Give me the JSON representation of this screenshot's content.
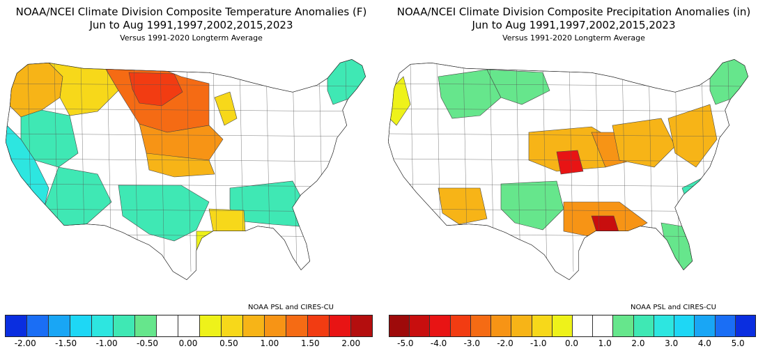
{
  "panels": [
    {
      "title_line1": "NOAA/NCEI Climate Division Composite Temperature Anomalies (F)",
      "title_line2": "Jun to Aug   1991,1997,2002,2015,2023",
      "title_line3": "Versus 1991-2020 Longterm Average",
      "credit": "NOAA PSL and CIRES-CU",
      "colorbar": [
        "#0a2ee0",
        "#1a6ef5",
        "#19a6f5",
        "#1ed7f5",
        "#2de6e0",
        "#3fe8b4",
        "#66e68c",
        "#ffffff",
        "#ffffff",
        "#eef21a",
        "#f7d81a",
        "#f7b417",
        "#f79415",
        "#f56b14",
        "#f23c12",
        "#e81414",
        "#b40e0e"
      ],
      "ticks": [
        "-2.00",
        "-1.50",
        "-1.00",
        "-0.50",
        "0.00",
        "0.50",
        "1.00",
        "1.50",
        "2.00"
      ],
      "map": {
        "base": "#ffffff",
        "regions": [
          {
            "label": "Pacific NW",
            "color": "#f7b417"
          },
          {
            "label": "Northern Rockies",
            "color": "#f7d81a"
          },
          {
            "label": "Northern Plains",
            "color": "#f56b14"
          },
          {
            "label": "Dakotas core",
            "color": "#f23c12"
          },
          {
            "label": "Central Plains",
            "color": "#f79415"
          },
          {
            "label": "Kansas/Nebraska",
            "color": "#f7b417"
          },
          {
            "label": "Great Basin",
            "color": "#3fe8b4"
          },
          {
            "label": "California coast",
            "color": "#2de6e0"
          },
          {
            "label": "Southwest",
            "color": "#3fe8b4"
          },
          {
            "label": "Southern Plains",
            "color": "#3fe8b4"
          },
          {
            "label": "Southeast",
            "color": "#3fe8b4"
          },
          {
            "label": "Louisiana",
            "color": "#f7d81a"
          },
          {
            "label": "Texas coast",
            "color": "#eef21a"
          },
          {
            "label": "Northeast",
            "color": "#3fe8b4"
          },
          {
            "label": "Lake Michigan",
            "color": "#f7d81a"
          }
        ]
      }
    },
    {
      "title_line1": "NOAA/NCEI Climate Division Composite Precipitation Anomalies (in)",
      "title_line2": "Jun to Aug   1991,1997,2002,2015,2023",
      "title_line3": "Versus 1991-2020 Longterm Average",
      "credit": "NOAA PSL and CIRES-CU",
      "colorbar": [
        "#9e0a0a",
        "#c80e0e",
        "#e81414",
        "#f23c12",
        "#f56b14",
        "#f79415",
        "#f7b417",
        "#f7d81a",
        "#eef21a",
        "#ffffff",
        "#ffffff",
        "#66e68c",
        "#3fe8b4",
        "#2de6e0",
        "#1ed7f5",
        "#19a6f5",
        "#1a6ef5",
        "#0a2ee0"
      ],
      "ticks": [
        "-5.0",
        "-4.0",
        "-3.0",
        "-2.0",
        "-1.0",
        "0.0",
        "1.0",
        "2.0",
        "3.0",
        "4.0",
        "5.0"
      ],
      "map": {
        "base": "#ffffff",
        "regions": [
          {
            "label": "Northern Rockies",
            "color": "#66e68c"
          },
          {
            "label": "Montana",
            "color": "#66e68c"
          },
          {
            "label": "Central Plains",
            "color": "#f7b417"
          },
          {
            "label": "Missouri",
            "color": "#f79415"
          },
          {
            "label": "Kansas center",
            "color": "#e81414"
          },
          {
            "label": "Ohio Valley",
            "color": "#f7b417"
          },
          {
            "label": "Mid-Atlantic",
            "color": "#f7b417"
          },
          {
            "label": "Gulf Coast",
            "color": "#f79415"
          },
          {
            "label": "Louisiana delta",
            "color": "#c80e0e"
          },
          {
            "label": "Arizona",
            "color": "#f7b417"
          },
          {
            "label": "Southern Plains",
            "color": "#66e68c"
          },
          {
            "label": "Florida",
            "color": "#66e68c"
          },
          {
            "label": "Northeast",
            "color": "#66e68c"
          },
          {
            "label": "Carolinas",
            "color": "#3fe8b4"
          },
          {
            "label": "Pacific NW",
            "color": "#eef21a"
          }
        ]
      }
    }
  ]
}
